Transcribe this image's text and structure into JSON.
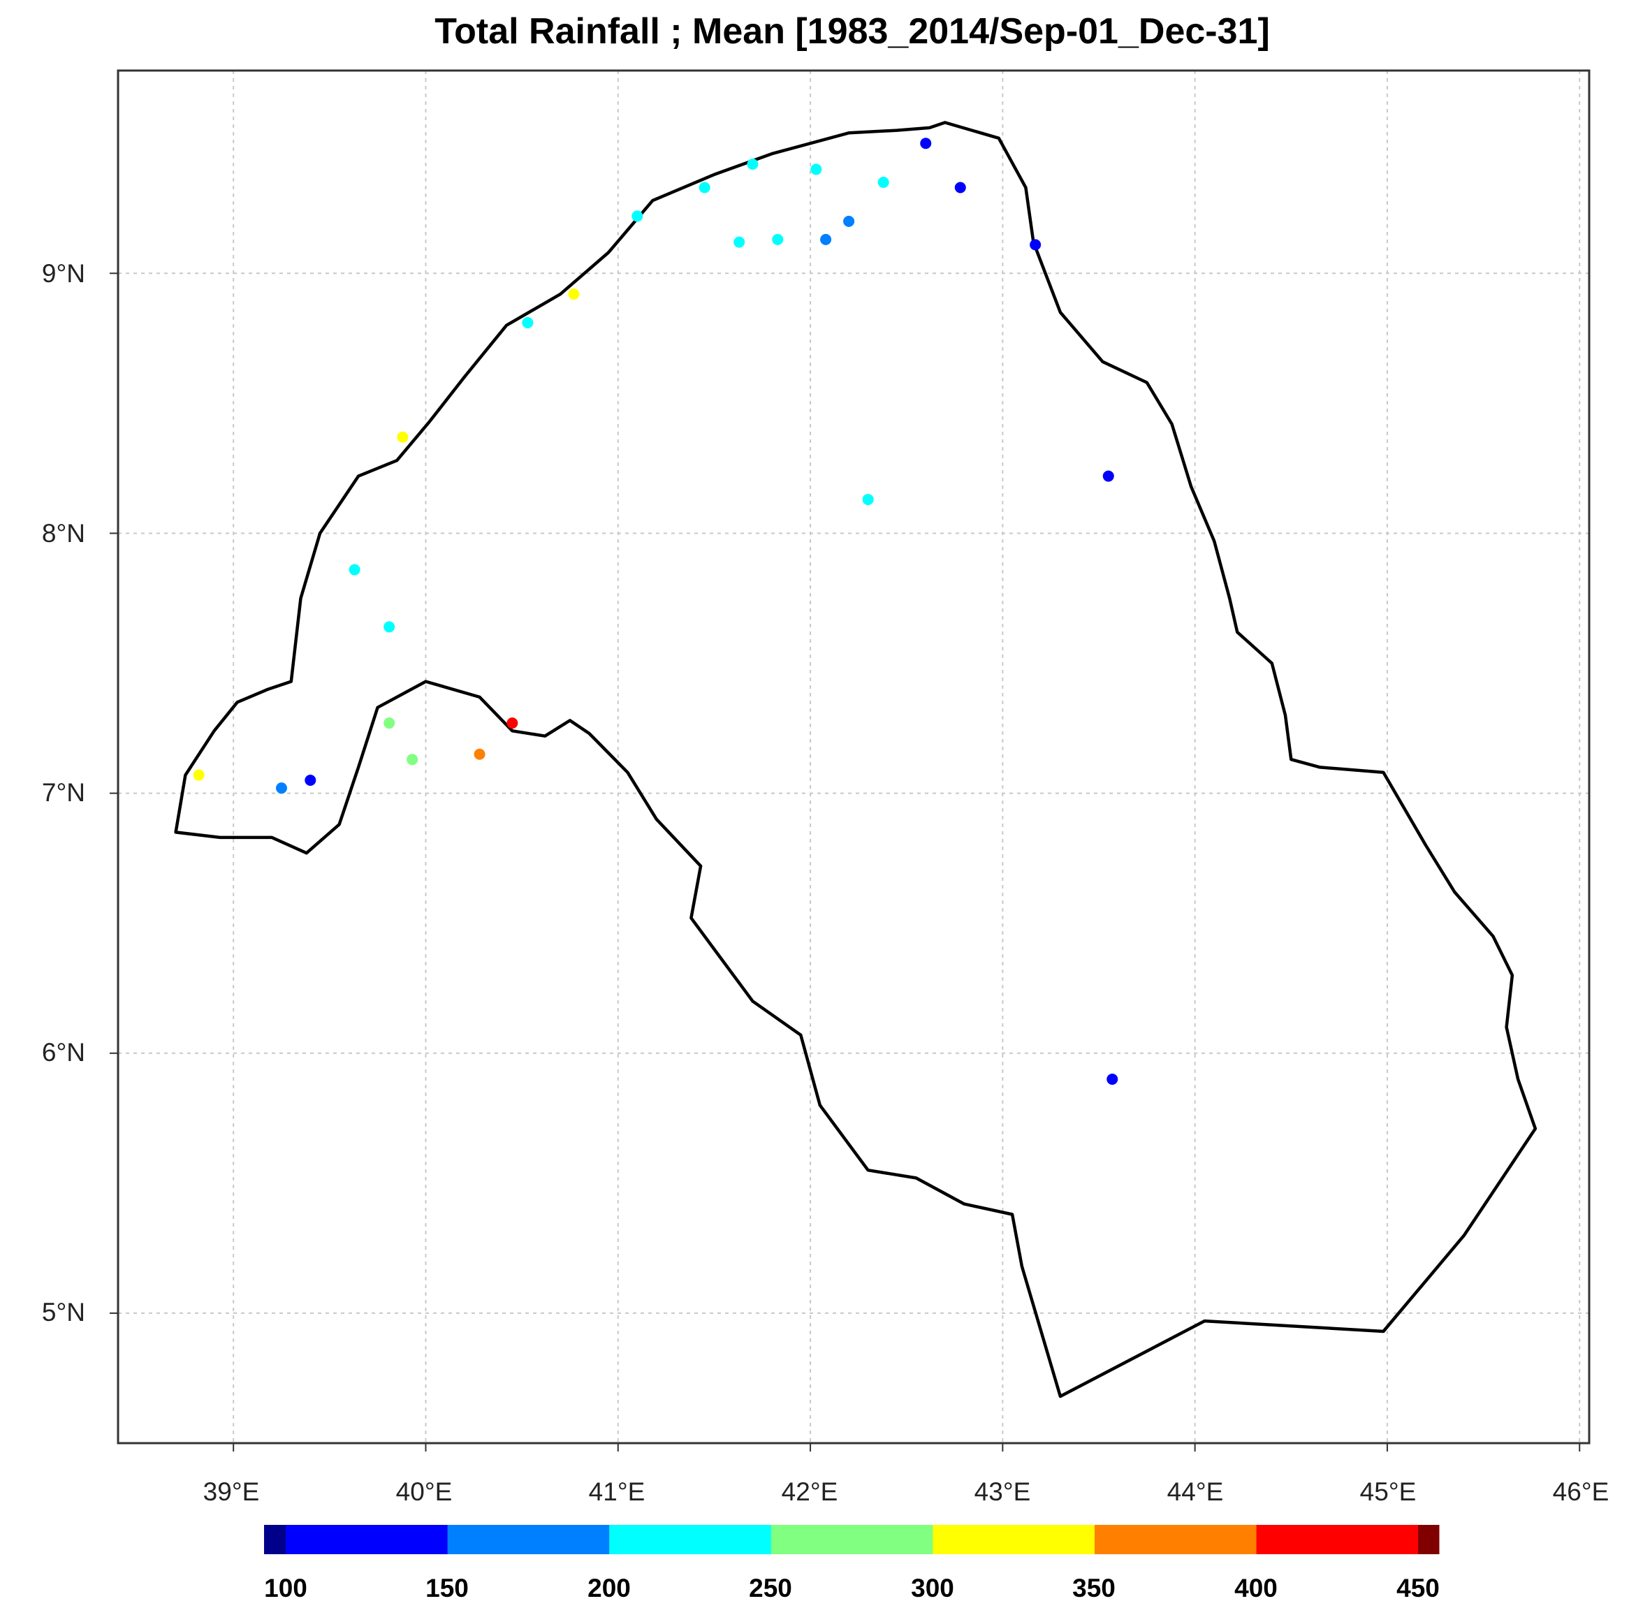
{
  "title": "Total Rainfall  ; Mean  [1983_2014/Sep-01_Dec-31]",
  "x_ticks": [
    "39°E",
    "40°E",
    "41°E",
    "42°E",
    "43°E",
    "44°E",
    "45°E",
    "46°E"
  ],
  "y_ticks": [
    "9°N",
    "8°N",
    "7°N",
    "6°N",
    "5°N"
  ],
  "colorbar": {
    "labels": [
      "100",
      "150",
      "200",
      "250",
      "300",
      "350",
      "400",
      "450"
    ],
    "colors": [
      "#00008B",
      "#0000FF",
      "#0080FF",
      "#00FFFF",
      "#80FF80",
      "#FFFF00",
      "#FF8000",
      "#FF0000",
      "#800000"
    ]
  },
  "chart_data": {
    "type": "scatter",
    "title": "Total Rainfall  ; Mean  [1983_2014/Sep-01_Dec-31]",
    "xlabel": "",
    "ylabel": "",
    "xlim": [
      38.4,
      46.05
    ],
    "ylim": [
      4.5,
      9.78
    ],
    "grid": true,
    "legend": "colorbar-bottom",
    "colorbar_breaks": [
      100,
      150,
      200,
      250,
      300,
      350,
      400,
      450
    ],
    "stations": [
      {
        "lon": 42.6,
        "lat": 9.5,
        "value": 130
      },
      {
        "lon": 42.78,
        "lat": 9.33,
        "value": 130
      },
      {
        "lon": 41.7,
        "lat": 9.42,
        "value": 220
      },
      {
        "lon": 42.03,
        "lat": 9.4,
        "value": 220
      },
      {
        "lon": 41.45,
        "lat": 9.33,
        "value": 220
      },
      {
        "lon": 42.38,
        "lat": 9.35,
        "value": 220
      },
      {
        "lon": 41.1,
        "lat": 9.22,
        "value": 220
      },
      {
        "lon": 42.2,
        "lat": 9.2,
        "value": 170
      },
      {
        "lon": 41.63,
        "lat": 9.12,
        "value": 220
      },
      {
        "lon": 41.83,
        "lat": 9.13,
        "value": 220
      },
      {
        "lon": 42.08,
        "lat": 9.13,
        "value": 170
      },
      {
        "lon": 43.17,
        "lat": 9.11,
        "value": 130
      },
      {
        "lon": 40.77,
        "lat": 8.92,
        "value": 320
      },
      {
        "lon": 40.53,
        "lat": 8.81,
        "value": 220
      },
      {
        "lon": 39.88,
        "lat": 8.37,
        "value": 320
      },
      {
        "lon": 43.55,
        "lat": 8.22,
        "value": 130
      },
      {
        "lon": 42.3,
        "lat": 8.13,
        "value": 220
      },
      {
        "lon": 39.63,
        "lat": 7.86,
        "value": 220
      },
      {
        "lon": 39.81,
        "lat": 7.64,
        "value": 220
      },
      {
        "lon": 39.81,
        "lat": 7.27,
        "value": 270
      },
      {
        "lon": 40.45,
        "lat": 7.27,
        "value": 420
      },
      {
        "lon": 40.28,
        "lat": 7.15,
        "value": 370
      },
      {
        "lon": 39.93,
        "lat": 7.13,
        "value": 270
      },
      {
        "lon": 38.82,
        "lat": 7.07,
        "value": 320
      },
      {
        "lon": 39.4,
        "lat": 7.05,
        "value": 130
      },
      {
        "lon": 39.25,
        "lat": 7.02,
        "value": 170
      },
      {
        "lon": 43.57,
        "lat": 5.9,
        "value": 130
      }
    ],
    "boundary": [
      [
        42.7,
        9.58
      ],
      [
        42.98,
        9.52
      ],
      [
        43.12,
        9.33
      ],
      [
        43.16,
        9.12
      ],
      [
        43.3,
        8.85
      ],
      [
        43.52,
        8.66
      ],
      [
        43.75,
        8.58
      ],
      [
        43.88,
        8.42
      ],
      [
        43.98,
        8.18
      ],
      [
        44.1,
        7.97
      ],
      [
        44.18,
        7.75
      ],
      [
        44.22,
        7.62
      ],
      [
        44.4,
        7.5
      ],
      [
        44.47,
        7.3
      ],
      [
        44.5,
        7.13
      ],
      [
        44.65,
        7.1
      ],
      [
        44.98,
        7.08
      ],
      [
        45.2,
        6.8
      ],
      [
        45.35,
        6.62
      ],
      [
        45.55,
        6.45
      ],
      [
        45.65,
        6.3
      ],
      [
        45.62,
        6.1
      ],
      [
        45.68,
        5.9
      ],
      [
        45.77,
        5.71
      ],
      [
        45.4,
        5.3
      ],
      [
        44.98,
        4.93
      ],
      [
        44.05,
        4.97
      ],
      [
        43.3,
        4.68
      ],
      [
        43.1,
        5.18
      ],
      [
        43.05,
        5.38
      ],
      [
        42.8,
        5.42
      ],
      [
        42.55,
        5.52
      ],
      [
        42.3,
        5.55
      ],
      [
        42.05,
        5.8
      ],
      [
        41.95,
        6.07
      ],
      [
        41.7,
        6.2
      ],
      [
        41.5,
        6.4
      ],
      [
        41.38,
        6.52
      ],
      [
        41.43,
        6.72
      ],
      [
        41.2,
        6.9
      ],
      [
        41.05,
        7.08
      ],
      [
        40.85,
        7.23
      ],
      [
        40.75,
        7.28
      ],
      [
        40.62,
        7.22
      ],
      [
        40.45,
        7.24
      ],
      [
        40.28,
        7.37
      ],
      [
        40.0,
        7.43
      ],
      [
        39.75,
        7.33
      ],
      [
        39.65,
        7.1
      ],
      [
        39.55,
        6.88
      ],
      [
        39.38,
        6.77
      ],
      [
        39.2,
        6.83
      ],
      [
        38.93,
        6.83
      ],
      [
        38.7,
        6.85
      ],
      [
        38.75,
        7.07
      ],
      [
        38.9,
        7.24
      ],
      [
        39.02,
        7.35
      ],
      [
        39.18,
        7.4
      ],
      [
        39.3,
        7.43
      ],
      [
        39.35,
        7.75
      ],
      [
        39.45,
        8.0
      ],
      [
        39.65,
        8.22
      ],
      [
        39.85,
        8.28
      ],
      [
        40.02,
        8.43
      ],
      [
        40.2,
        8.6
      ],
      [
        40.42,
        8.8
      ],
      [
        40.7,
        8.92
      ],
      [
        40.95,
        9.08
      ],
      [
        41.18,
        9.28
      ],
      [
        41.5,
        9.38
      ],
      [
        41.8,
        9.46
      ],
      [
        42.2,
        9.54
      ],
      [
        42.45,
        9.55
      ],
      [
        42.62,
        9.56
      ],
      [
        42.7,
        9.58
      ]
    ]
  }
}
